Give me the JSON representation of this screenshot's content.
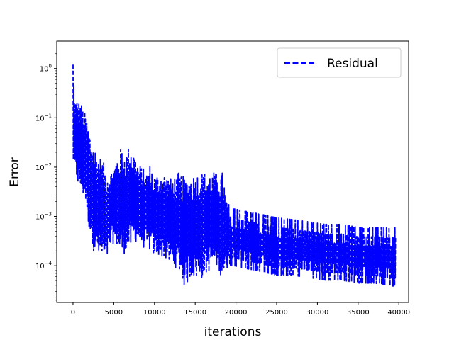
{
  "chart_data": {
    "type": "line",
    "xlabel": "iterations",
    "ylabel": "Error",
    "yscale": "log",
    "xlim": [
      -2000,
      41200
    ],
    "ylim": [
      1.8e-05,
      3.6
    ],
    "grid": false,
    "legend_placement": "top-right",
    "colors": {
      "series": "#0000ff",
      "axes": "#000000",
      "background": "#ffffff",
      "legend_border": "#cccccc"
    },
    "x_ticks": [
      {
        "value": 0,
        "label": "0"
      },
      {
        "value": 5000,
        "label": "5000"
      },
      {
        "value": 10000,
        "label": "10000"
      },
      {
        "value": 15000,
        "label": "15000"
      },
      {
        "value": 20000,
        "label": "20000"
      },
      {
        "value": 25000,
        "label": "25000"
      },
      {
        "value": 30000,
        "label": "30000"
      },
      {
        "value": 35000,
        "label": "35000"
      },
      {
        "value": 40000,
        "label": "40000"
      }
    ],
    "y_ticks": [
      {
        "value": 0.0001,
        "base": "10",
        "exp": "−4"
      },
      {
        "value": 0.001,
        "base": "10",
        "exp": "−3"
      },
      {
        "value": 0.01,
        "base": "10",
        "exp": "−2"
      },
      {
        "value": 0.1,
        "base": "10",
        "exp": "−1"
      },
      {
        "value": 1,
        "base": "10",
        "exp": "0"
      }
    ],
    "series": [
      {
        "name": "Residual",
        "style": "dashed",
        "oscillates": true,
        "x": [
          0,
          150,
          300,
          600,
          1000,
          1500,
          2000,
          2500,
          3000,
          3500,
          4000,
          4500,
          5000,
          5500,
          6000,
          6500,
          7000,
          7500,
          8000,
          8500,
          9000,
          9500,
          10000,
          11000,
          12000,
          13000,
          13700,
          14500,
          15500,
          16500,
          17500,
          18500,
          18700,
          19500,
          21000,
          23000,
          25000,
          27000,
          29000,
          31000,
          33000,
          35000,
          37000,
          39000,
          39600
        ],
        "upper": [
          2.0,
          0.28,
          0.25,
          0.24,
          0.2,
          0.13,
          0.06,
          0.03,
          0.02,
          0.015,
          0.01,
          0.008,
          0.01,
          0.02,
          0.025,
          0.02,
          0.03,
          0.02,
          0.012,
          0.01,
          0.008,
          0.012,
          0.007,
          0.008,
          0.006,
          0.008,
          0.006,
          0.007,
          0.008,
          0.008,
          0.008,
          0.008,
          0.0025,
          0.0017,
          0.0015,
          0.0013,
          0.0011,
          0.001,
          0.0009,
          0.0008,
          0.0008,
          0.0007,
          0.0007,
          0.0007,
          0.0007
        ],
        "lower": [
          0.01,
          0.008,
          0.006,
          0.004,
          0.003,
          0.002,
          0.0005,
          0.0002,
          0.00015,
          0.00012,
          0.0001,
          0.0002,
          0.0003,
          0.0002,
          0.00015,
          0.0002,
          0.0002,
          0.0003,
          0.0003,
          0.00025,
          0.0002,
          0.0002,
          0.00015,
          0.00015,
          0.0001,
          8e-05,
          3.5e-05,
          6e-05,
          5e-05,
          7e-05,
          0.0001,
          5e-05,
          8e-05,
          8e-05,
          7e-05,
          6e-05,
          5e-05,
          5e-05,
          4.5e-05,
          4e-05,
          4e-05,
          3.5e-05,
          3.5e-05,
          3e-05,
          3e-05
        ]
      }
    ]
  }
}
